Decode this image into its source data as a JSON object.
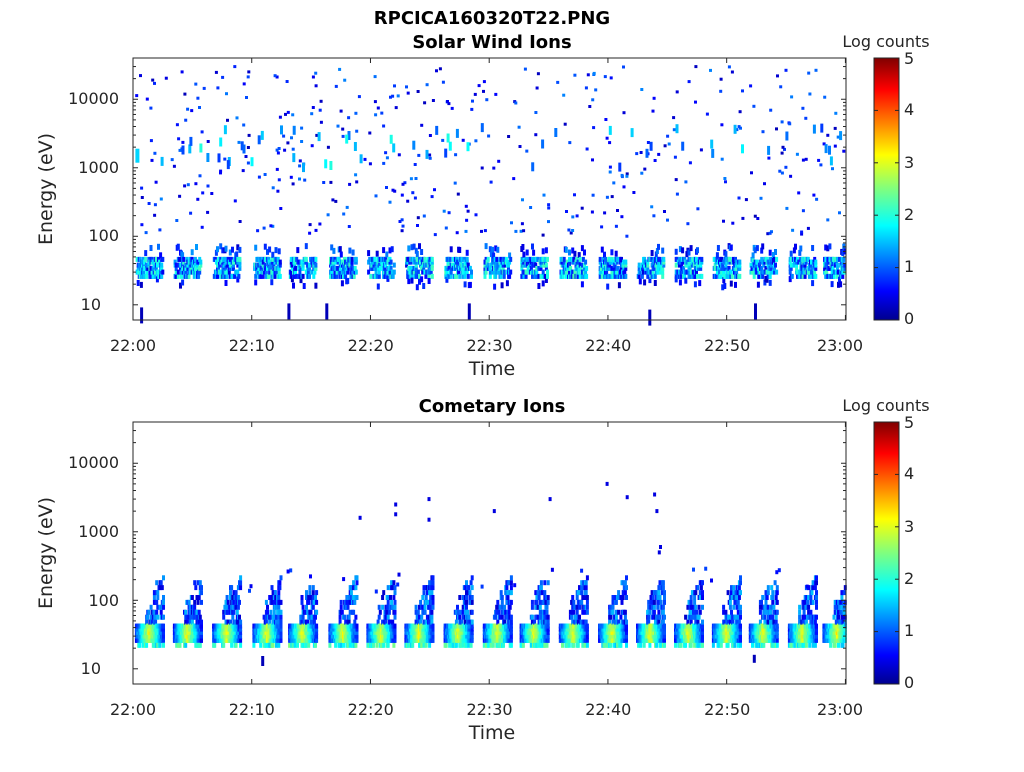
{
  "figure_title": "RPCICA160320T22.PNG",
  "chart_data": [
    {
      "type": "heatmap",
      "title": "Solar Wind Ions",
      "xlabel": "Time",
      "ylabel": "Energy (eV)",
      "x_ticks": [
        "22:00",
        "22:10",
        "22:20",
        "22:30",
        "22:40",
        "22:50",
        "23:00"
      ],
      "xlim": [
        "22:00",
        "23:00"
      ],
      "y_ticks": [
        "10",
        "100",
        "1000",
        "10000"
      ],
      "y_scale": "log",
      "ylim": [
        6,
        40000
      ],
      "colorbar": {
        "label": "Log counts",
        "ticks": [
          "0",
          "1",
          "2",
          "3",
          "4",
          "5"
        ],
        "range": [
          0,
          5
        ],
        "colormap": "jet"
      },
      "band_centers_min": [
        1.3,
        4.5,
        7.8,
        11.2,
        14.2,
        17.6,
        20.8,
        24.0,
        27.3,
        30.6,
        33.7,
        37.0,
        40.3,
        43.5,
        46.7,
        49.9,
        53.0,
        56.3,
        59.2
      ],
      "low_band_energy_eV": [
        25,
        50
      ],
      "low_band_log_counts": [
        0.5,
        2.2
      ],
      "sparse_high_energy_range_eV": [
        100,
        30000
      ],
      "sparse_high_energy_log_counts": [
        0.2,
        2.0
      ]
    },
    {
      "type": "heatmap",
      "title": "Cometary Ions",
      "xlabel": "Time",
      "ylabel": "Energy (eV)",
      "x_ticks": [
        "22:00",
        "22:10",
        "22:20",
        "22:30",
        "22:40",
        "22:50",
        "23:00"
      ],
      "xlim": [
        "22:00",
        "23:00"
      ],
      "y_ticks": [
        "10",
        "100",
        "1000",
        "10000"
      ],
      "y_scale": "log",
      "ylim": [
        6,
        40000
      ],
      "colorbar": {
        "label": "Log counts",
        "ticks": [
          "0",
          "1",
          "2",
          "3",
          "4",
          "5"
        ],
        "range": [
          0,
          5
        ],
        "colormap": "jet"
      },
      "band_centers_min": [
        1.3,
        4.5,
        7.8,
        11.2,
        14.2,
        17.6,
        20.8,
        24.0,
        27.3,
        30.6,
        33.7,
        37.0,
        40.3,
        43.5,
        46.7,
        49.9,
        53.0,
        56.3,
        59.2
      ],
      "core_energy_eV": [
        25,
        45
      ],
      "core_log_counts": [
        2.5,
        3.2
      ],
      "tail_max_energy_eV": [
        100,
        300
      ],
      "tail_log_counts": [
        0.3,
        1.5
      ],
      "sparse_high_energy_points": [
        [
          22.0,
          2500
        ],
        [
          22.0,
          1800
        ],
        [
          24.8,
          3000
        ],
        [
          24.8,
          1500
        ],
        [
          30.3,
          2000
        ],
        [
          35.0,
          3000
        ],
        [
          39.8,
          5000
        ],
        [
          41.5,
          3200
        ],
        [
          43.8,
          3500
        ],
        [
          44.0,
          2000
        ],
        [
          44.3,
          600
        ],
        [
          44.2,
          500
        ],
        [
          19.0,
          1600
        ]
      ]
    }
  ]
}
